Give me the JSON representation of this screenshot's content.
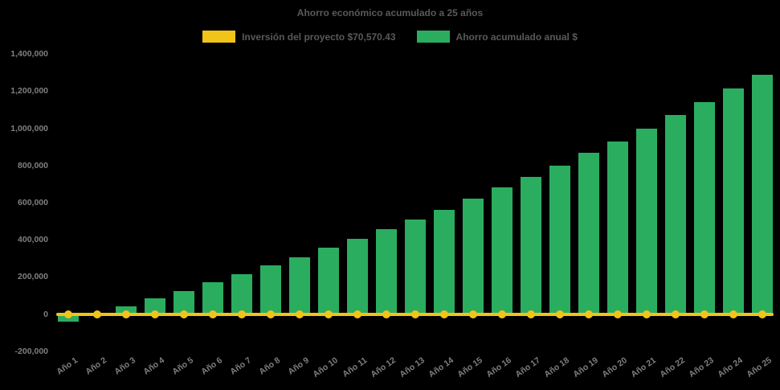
{
  "background_color": "#000000",
  "chart_data": {
    "type": "bar",
    "title": "Ahorro económico acumulado a 25 años",
    "categories": [
      "Año 1",
      "Año 2",
      "Año 3",
      "Año 4",
      "Año 5",
      "Año 6",
      "Año 7",
      "Año 8",
      "Año 9",
      "Año 10",
      "Año 11",
      "Año 12",
      "Año 13",
      "Año 14",
      "Año 15",
      "Año 16",
      "Año 17",
      "Año 18",
      "Año 19",
      "Año 20",
      "Año 21",
      "Año 22",
      "Año 23",
      "Año 24",
      "Año 25"
    ],
    "series": [
      {
        "name": "Inversión del proyecto $70,570.43",
        "type": "line",
        "color": "#F0C419",
        "marker": "circle",
        "values": [
          0,
          0,
          0,
          0,
          0,
          0,
          0,
          0,
          0,
          0,
          0,
          0,
          0,
          0,
          0,
          0,
          0,
          0,
          0,
          0,
          0,
          0,
          0,
          0,
          0
        ]
      },
      {
        "name": "Ahorro acumulado anual $",
        "type": "bar",
        "color": "#2BAD5F",
        "values": [
          -40000,
          -5000,
          40000,
          85000,
          125000,
          170000,
          215000,
          260000,
          305000,
          355000,
          405000,
          455000,
          510000,
          560000,
          620000,
          680000,
          740000,
          800000,
          870000,
          930000,
          1000000,
          1070000,
          1140000,
          1215000,
          1290000
        ]
      }
    ],
    "xlabel": "",
    "ylabel": "",
    "ylim": [
      -200000,
      1400000
    ],
    "ytick_step": 200000,
    "yticks": [
      {
        "value": 1400000,
        "label": "1,400,000"
      },
      {
        "value": 1200000,
        "label": "1,200,000"
      },
      {
        "value": 1000000,
        "label": "1,000,000"
      },
      {
        "value": 800000,
        "label": "800,000"
      },
      {
        "value": 600000,
        "label": "600,000"
      },
      {
        "value": 400000,
        "label": "400,000"
      },
      {
        "value": 200000,
        "label": "200,000"
      },
      {
        "value": 0,
        "label": "0"
      },
      {
        "value": -200000,
        "label": "-200,000"
      }
    ],
    "grid": false,
    "legend_position": "top"
  },
  "legend": [
    {
      "label": "Inversión del proyecto $70,570.43",
      "color": "#F0C419",
      "name": "investment"
    },
    {
      "label": "Ahorro acumulado anual $",
      "color": "#2BAD5F",
      "name": "savings"
    }
  ]
}
